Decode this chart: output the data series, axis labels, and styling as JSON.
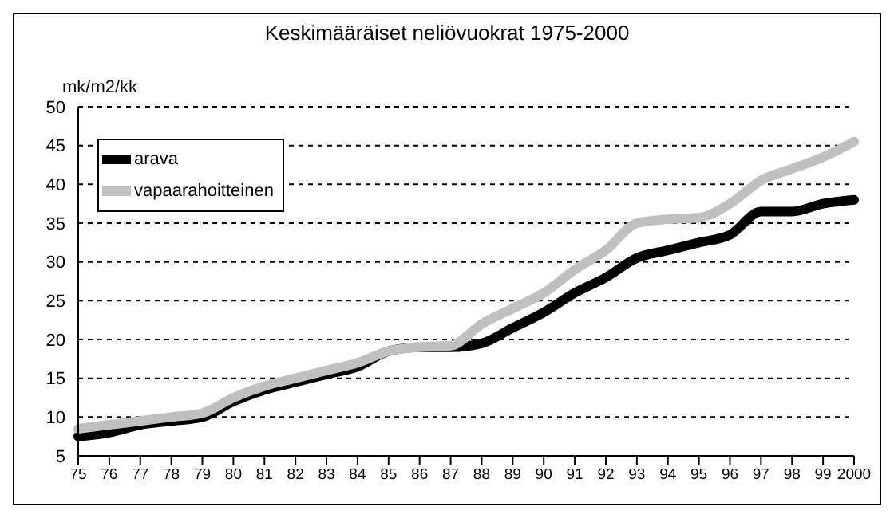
{
  "chart_data": {
    "type": "line",
    "title": "Keskimääräiset neliövuokrat 1975-2000",
    "ylabel": "mk/m2/kk",
    "categories": [
      "75",
      "76",
      "77",
      "78",
      "79",
      "80",
      "81",
      "82",
      "83",
      "84",
      "85",
      "86",
      "87",
      "88",
      "89",
      "90",
      "91",
      "92",
      "93",
      "94",
      "95",
      "96",
      "97",
      "98",
      "99",
      "2000"
    ],
    "series": [
      {
        "name": "arava",
        "color": "#000000",
        "values": [
          7.5,
          8,
          9,
          9.5,
          10,
          12,
          13.5,
          14.5,
          15.5,
          16.5,
          18.5,
          19,
          19,
          19.5,
          21.5,
          23.5,
          26,
          28,
          30.5,
          31.5,
          32.5,
          33.5,
          36.5,
          36.5,
          37.5,
          38
        ]
      },
      {
        "name": "vapaarahoitteinen",
        "color": "#c0c0c0",
        "values": [
          8.5,
          9,
          9.5,
          10,
          10.5,
          12.5,
          14,
          15,
          16,
          17,
          18.5,
          19,
          19.2,
          22,
          24,
          26,
          29,
          31.5,
          35,
          35.5,
          35.7,
          37.5,
          40.5,
          42,
          43.5,
          45.5
        ]
      }
    ],
    "ylim": [
      5,
      50
    ],
    "yticks": [
      5,
      10,
      15,
      20,
      25,
      30,
      35,
      40,
      45,
      50
    ],
    "grid": "y",
    "legend": "top left",
    "marker": "none",
    "line_style": "solid"
  }
}
